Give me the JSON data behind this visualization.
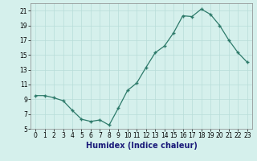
{
  "x": [
    0,
    1,
    2,
    3,
    4,
    5,
    6,
    7,
    8,
    9,
    10,
    11,
    12,
    13,
    14,
    15,
    16,
    17,
    18,
    19,
    20,
    21,
    22,
    23
  ],
  "y": [
    9.5,
    9.5,
    9.2,
    8.8,
    7.5,
    6.3,
    6.0,
    6.2,
    5.5,
    7.8,
    10.2,
    11.2,
    13.3,
    15.3,
    16.2,
    18.0,
    20.3,
    20.2,
    21.2,
    20.5,
    19.0,
    17.0,
    15.3,
    14.0
  ],
  "xlabel": "Humidex (Indice chaleur)",
  "ylim": [
    5,
    22
  ],
  "xlim": [
    -0.5,
    23.5
  ],
  "yticks": [
    5,
    7,
    9,
    11,
    13,
    15,
    17,
    19,
    21
  ],
  "xticks": [
    0,
    1,
    2,
    3,
    4,
    5,
    6,
    7,
    8,
    9,
    10,
    11,
    12,
    13,
    14,
    15,
    16,
    17,
    18,
    19,
    20,
    21,
    22,
    23
  ],
  "line_color": "#2d7a6a",
  "marker": "+",
  "bg_color": "#d5f0ec",
  "grid_color": "#b8ddd8",
  "xlabel_fontsize": 7,
  "tick_fontsize": 5.5
}
